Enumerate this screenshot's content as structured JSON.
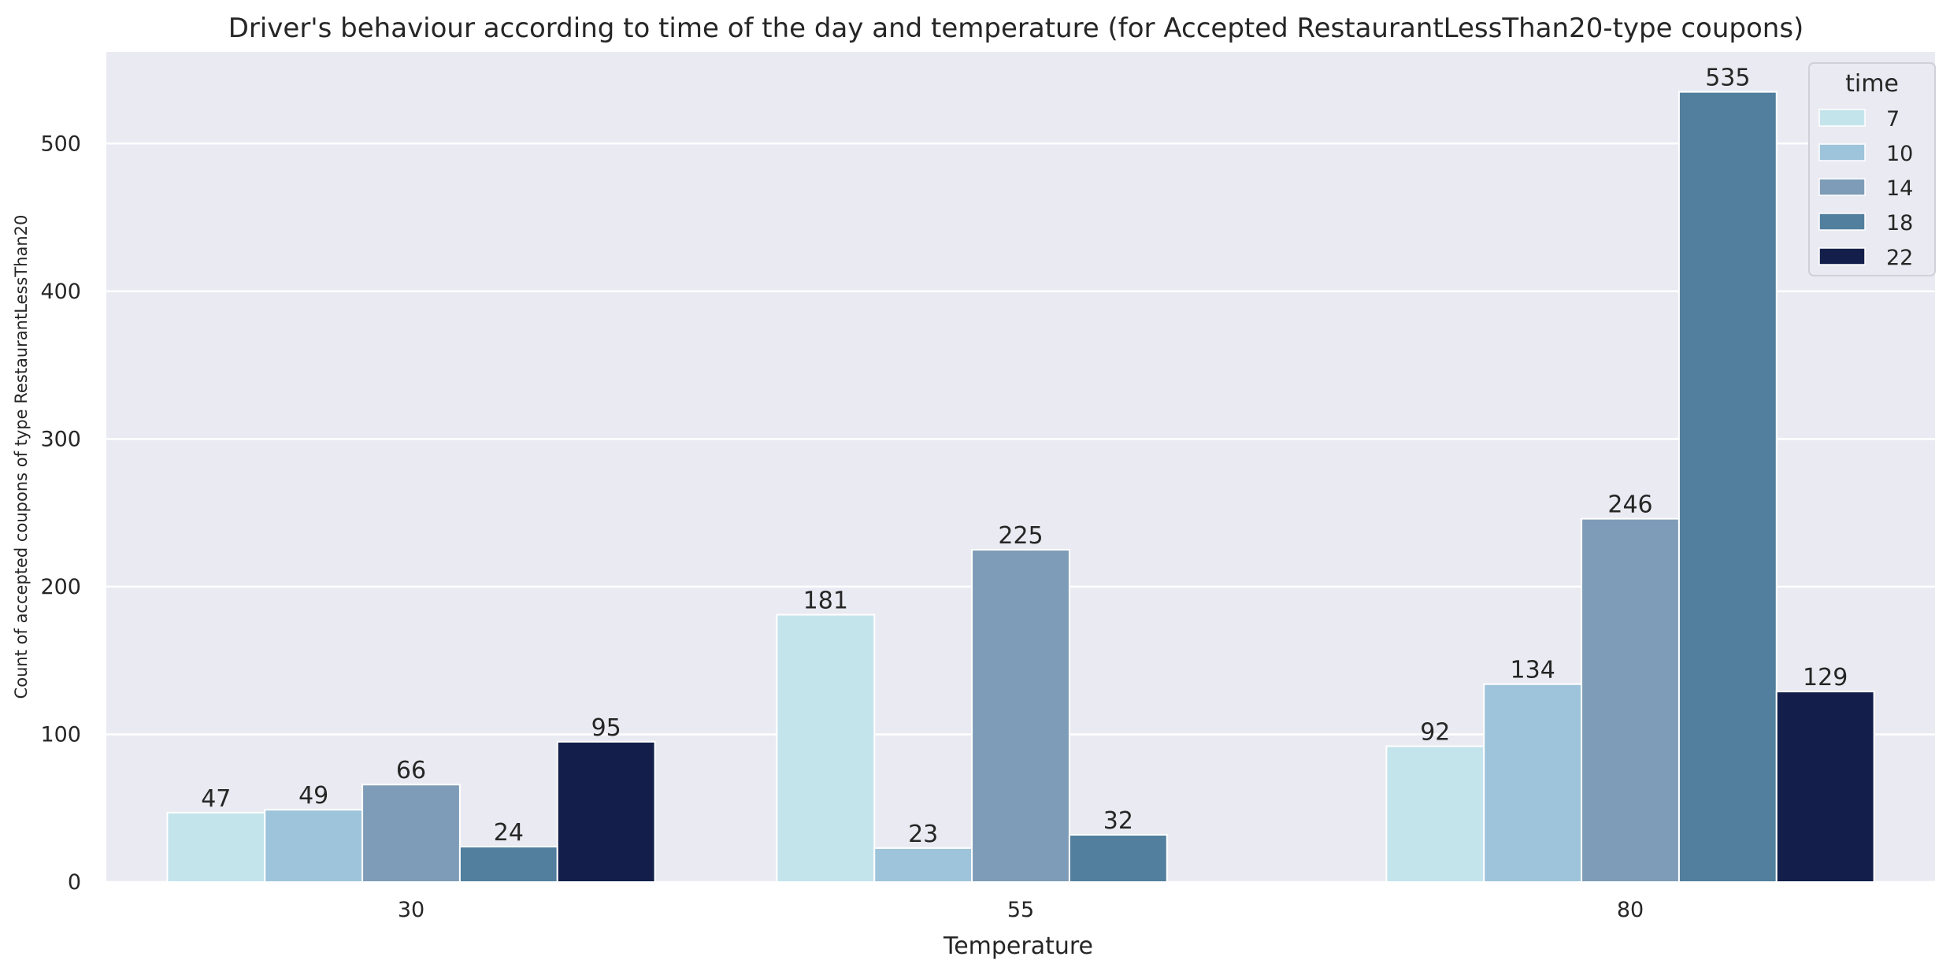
{
  "chart_data": {
    "type": "bar",
    "title": "Driver's behaviour according to time of the day and temperature (for Accepted RestaurantLessThan20-type coupons)",
    "xlabel": "Temperature",
    "ylabel": "Count of accepted coupons of type RestaurantLessThan20",
    "categories": [
      "30",
      "55",
      "80"
    ],
    "y_ticks": [
      "0",
      "100",
      "200",
      "300",
      "400",
      "500"
    ],
    "ylim": [
      0,
      562
    ],
    "grid": true,
    "legend": {
      "title": "time",
      "placement": "top-right"
    },
    "series": [
      {
        "name": "7",
        "color": "#c4e4ec",
        "values": [
          47,
          181,
          92
        ]
      },
      {
        "name": "10",
        "color": "#9dc4da",
        "values": [
          49,
          23,
          134
        ]
      },
      {
        "name": "14",
        "color": "#7e9cb7",
        "values": [
          66,
          225,
          246
        ]
      },
      {
        "name": "18",
        "color": "#517f9d",
        "values": [
          24,
          32,
          535
        ]
      },
      {
        "name": "22",
        "color": "#131f4a",
        "values": [
          95,
          null,
          129
        ]
      }
    ]
  }
}
